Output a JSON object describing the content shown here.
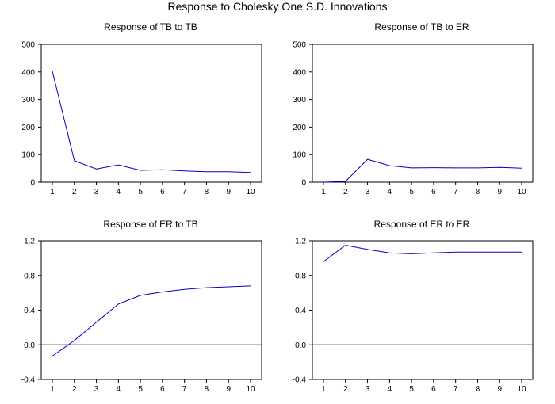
{
  "title": "Response to Cholesky One S.D. Innovations",
  "colors": {
    "line": "#0000cc",
    "axis": "#000000",
    "zero_line": "#000000"
  },
  "chart_data": [
    {
      "type": "line",
      "title": "Response of TB to TB",
      "x": [
        1,
        2,
        3,
        4,
        5,
        6,
        7,
        8,
        9,
        10
      ],
      "values": [
        403,
        78,
        48,
        63,
        43,
        45,
        41,
        38,
        38,
        35
      ],
      "ylim": [
        0,
        500
      ],
      "yticks": [
        "0",
        "100",
        "200",
        "300",
        "400",
        "500"
      ],
      "xticks": [
        "1",
        "2",
        "3",
        "4",
        "5",
        "6",
        "7",
        "8",
        "9",
        "10"
      ],
      "zero_line": false
    },
    {
      "type": "line",
      "title": "Response of TB to ER",
      "x": [
        1,
        2,
        3,
        4,
        5,
        6,
        7,
        8,
        9,
        10
      ],
      "values": [
        0,
        3,
        83,
        60,
        52,
        53,
        52,
        52,
        54,
        51
      ],
      "ylim": [
        0,
        500
      ],
      "yticks": [
        "0",
        "100",
        "200",
        "300",
        "400",
        "500"
      ],
      "xticks": [
        "1",
        "2",
        "3",
        "4",
        "5",
        "6",
        "7",
        "8",
        "9",
        "10"
      ],
      "zero_line": false
    },
    {
      "type": "line",
      "title": "Response of ER to TB",
      "x": [
        1,
        2,
        3,
        4,
        5,
        6,
        7,
        8,
        9,
        10
      ],
      "values": [
        -0.13,
        0.05,
        0.26,
        0.47,
        0.57,
        0.61,
        0.64,
        0.66,
        0.67,
        0.68
      ],
      "ylim": [
        -0.4,
        1.2
      ],
      "yticks": [
        "-0.4",
        "0.0",
        "0.4",
        "0.8",
        "1.2"
      ],
      "xticks": [
        "1",
        "2",
        "3",
        "4",
        "5",
        "6",
        "7",
        "8",
        "9",
        "10"
      ],
      "zero_line": true
    },
    {
      "type": "line",
      "title": "Response of ER to ER",
      "x": [
        1,
        2,
        3,
        4,
        5,
        6,
        7,
        8,
        9,
        10
      ],
      "values": [
        0.96,
        1.15,
        1.1,
        1.06,
        1.05,
        1.06,
        1.07,
        1.07,
        1.07,
        1.07
      ],
      "ylim": [
        -0.4,
        1.2
      ],
      "yticks": [
        "-0.4",
        "0.0",
        "0.4",
        "0.8",
        "1.2"
      ],
      "xticks": [
        "1",
        "2",
        "3",
        "4",
        "5",
        "6",
        "7",
        "8",
        "9",
        "10"
      ],
      "zero_line": true
    }
  ]
}
